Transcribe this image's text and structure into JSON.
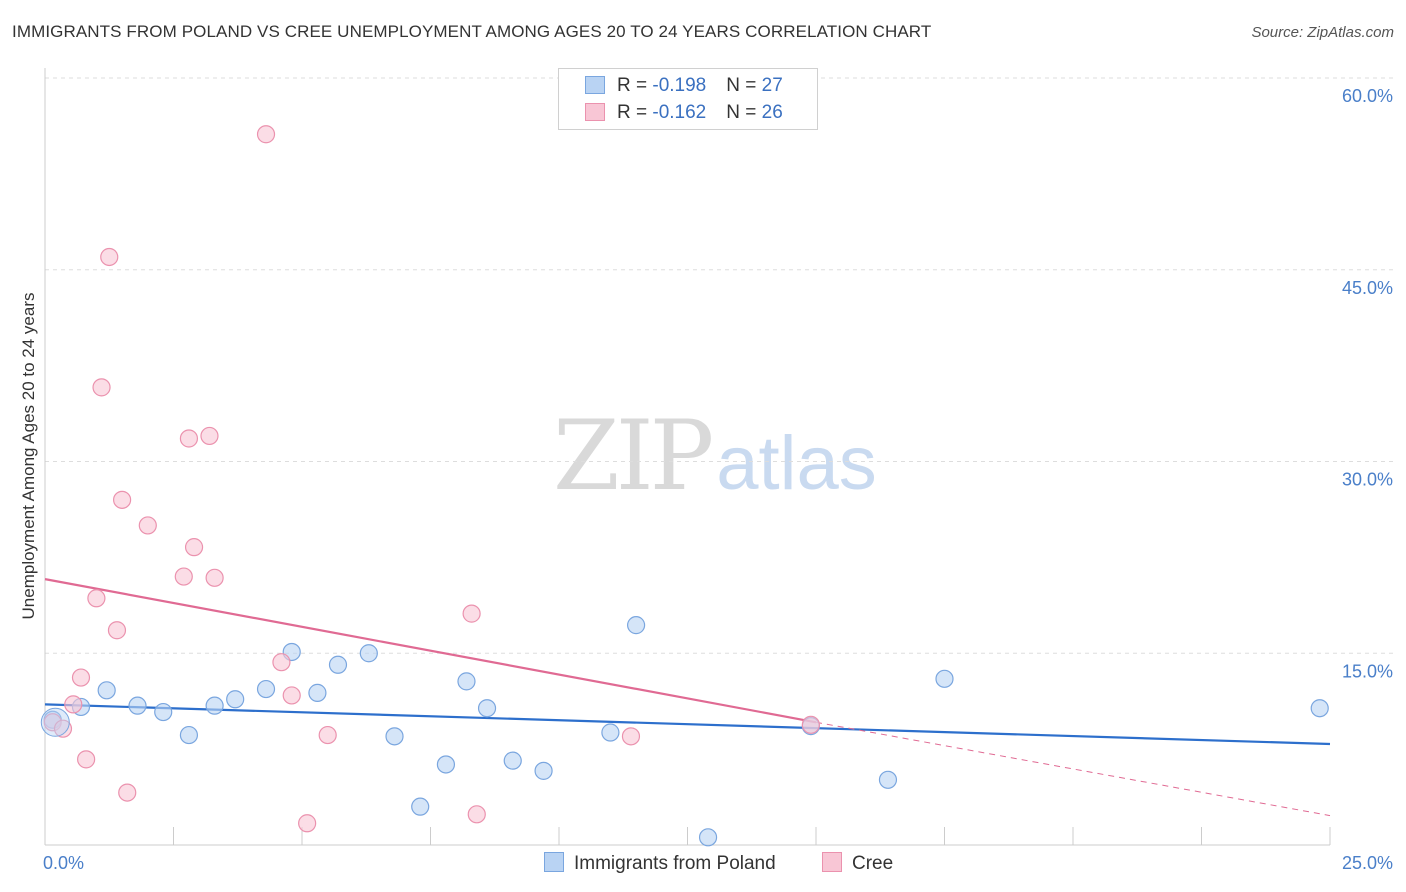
{
  "header": {
    "title": "IMMIGRANTS FROM POLAND VS CREE UNEMPLOYMENT AMONG AGES 20 TO 24 YEARS CORRELATION CHART",
    "source": "Source: ZipAtlas.com"
  },
  "watermark": {
    "zip": "ZIP",
    "atlas": "atlas"
  },
  "legend": {
    "poland": {
      "r_label": "R = ",
      "r_value": "-0.198",
      "n_label": "N = ",
      "n_value": "27"
    },
    "cree": {
      "r_label": "R = ",
      "r_value": "-0.162",
      "n_label": "N = ",
      "n_value": "26"
    }
  },
  "colors": {
    "poland_fill": "#b9d3f3",
    "poland_stroke": "#7aa6df",
    "poland_line": "#2d6fcc",
    "cree_fill": "#f8c6d5",
    "cree_stroke": "#eb92ae",
    "cree_line": "#e06a93",
    "grid": "#dddddd",
    "axis_label": "#4a7fc9"
  },
  "chart_data": {
    "type": "scatter",
    "title": "IMMIGRANTS FROM POLAND VS CREE UNEMPLOYMENT AMONG AGES 20 TO 24 YEARS CORRELATION CHART",
    "xlabel": "",
    "ylabel": "Unemployment Among Ages 20 to 24 years",
    "xlim": [
      0,
      25
    ],
    "ylim": [
      0,
      60
    ],
    "x_tick_labels": [
      "0.0%",
      "25.0%"
    ],
    "y_ticks": [
      15,
      30,
      45,
      60
    ],
    "y_tick_labels": [
      "15.0%",
      "30.0%",
      "45.0%",
      "60.0%"
    ],
    "grid": true,
    "series": [
      {
        "name": "Immigrants from Poland",
        "points": [
          [
            0.15,
            9.8
          ],
          [
            0.7,
            10.8
          ],
          [
            1.2,
            12.1
          ],
          [
            1.8,
            10.9
          ],
          [
            2.3,
            10.4
          ],
          [
            2.8,
            8.6
          ],
          [
            3.3,
            10.9
          ],
          [
            3.7,
            11.4
          ],
          [
            4.3,
            12.2
          ],
          [
            4.8,
            15.1
          ],
          [
            5.3,
            11.9
          ],
          [
            5.7,
            14.1
          ],
          [
            6.3,
            15.0
          ],
          [
            6.8,
            8.5
          ],
          [
            7.3,
            3.0
          ],
          [
            7.8,
            6.3
          ],
          [
            8.2,
            12.8
          ],
          [
            8.6,
            10.7
          ],
          [
            9.1,
            6.6
          ],
          [
            9.7,
            5.8
          ],
          [
            11.0,
            8.8
          ],
          [
            11.5,
            17.2
          ],
          [
            12.9,
            0.6
          ],
          [
            14.9,
            9.3
          ],
          [
            16.4,
            5.1
          ],
          [
            17.5,
            13.0
          ],
          [
            24.8,
            10.7
          ]
        ]
      },
      {
        "name": "Cree",
        "points": [
          [
            0.15,
            9.6
          ],
          [
            0.35,
            9.1
          ],
          [
            0.55,
            11.0
          ],
          [
            0.7,
            13.1
          ],
          [
            0.8,
            6.7
          ],
          [
            1.0,
            19.3
          ],
          [
            1.1,
            35.8
          ],
          [
            1.25,
            46.0
          ],
          [
            1.4,
            16.8
          ],
          [
            1.5,
            27.0
          ],
          [
            1.6,
            4.1
          ],
          [
            2.0,
            25.0
          ],
          [
            2.7,
            21.0
          ],
          [
            2.8,
            31.8
          ],
          [
            2.9,
            23.3
          ],
          [
            3.2,
            32.0
          ],
          [
            3.3,
            20.9
          ],
          [
            4.3,
            55.6
          ],
          [
            4.6,
            14.3
          ],
          [
            4.8,
            11.7
          ],
          [
            5.1,
            1.7
          ],
          [
            5.5,
            8.6
          ],
          [
            8.3,
            18.1
          ],
          [
            8.4,
            2.4
          ],
          [
            11.4,
            8.5
          ],
          [
            14.9,
            9.4
          ]
        ]
      }
    ],
    "trendlines": [
      {
        "series": "Immigrants from Poland",
        "x": [
          0,
          25
        ],
        "y": [
          11.0,
          7.9
        ],
        "style": "solid"
      },
      {
        "series": "Cree",
        "x": [
          0,
          15
        ],
        "y": [
          20.8,
          9.6
        ],
        "style": "solid"
      },
      {
        "series": "Cree",
        "x": [
          15,
          25
        ],
        "y": [
          9.6,
          2.3
        ],
        "style": "dashed"
      }
    ],
    "legend": [
      "Immigrants from Poland",
      "Cree"
    ],
    "legend_position": "top-center"
  }
}
